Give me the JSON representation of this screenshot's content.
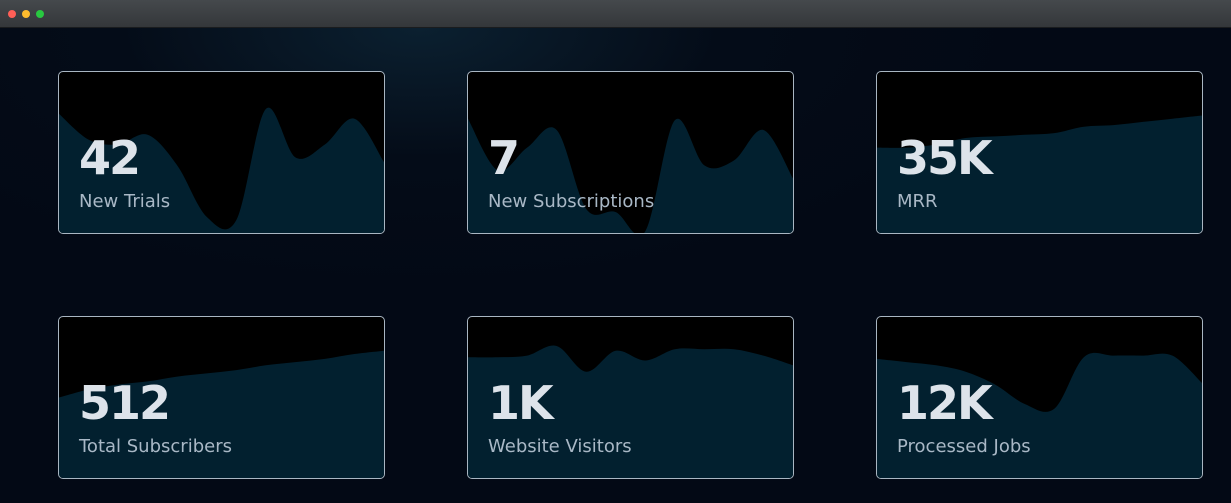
{
  "window": {
    "controls": [
      {
        "name": "close",
        "color": "#ff5f57"
      },
      {
        "name": "minimize",
        "color": "#febc2e"
      },
      {
        "name": "maximize",
        "color": "#28c840"
      }
    ]
  },
  "colors": {
    "card_fill": "#02202f",
    "card_top": "#000000",
    "border": "#a9b6c2",
    "value": "#dde3ea",
    "label": "#a9b8c6"
  },
  "cards": [
    {
      "value": "42",
      "label": "New Trials",
      "sparkline": [
        0.74,
        0.58,
        0.55,
        0.61,
        0.42,
        0.1,
        0.08,
        0.77,
        0.47,
        0.55,
        0.71,
        0.44
      ]
    },
    {
      "value": "7",
      "label": "New Subscriptions",
      "sparkline": [
        0.71,
        0.39,
        0.53,
        0.64,
        0.15,
        0.13,
        0.01,
        0.7,
        0.42,
        0.45,
        0.64,
        0.34
      ]
    },
    {
      "value": "35K",
      "label": "MRR",
      "sparkline": [
        0.53,
        0.53,
        0.55,
        0.59,
        0.6,
        0.61,
        0.62,
        0.66,
        0.67,
        0.69,
        0.71,
        0.73
      ]
    },
    {
      "value": "512",
      "label": "Total Subscribers",
      "sparkline": [
        0.5,
        0.55,
        0.58,
        0.6,
        0.63,
        0.65,
        0.67,
        0.7,
        0.72,
        0.74,
        0.77,
        0.79
      ]
    },
    {
      "value": "1K",
      "label": "Website Visitors",
      "sparkline": [
        0.75,
        0.75,
        0.76,
        0.82,
        0.66,
        0.79,
        0.73,
        0.8,
        0.8,
        0.8,
        0.76,
        0.7
      ]
    },
    {
      "value": "12K",
      "label": "Processed Jobs",
      "sparkline": [
        0.74,
        0.72,
        0.7,
        0.66,
        0.58,
        0.46,
        0.43,
        0.75,
        0.76,
        0.76,
        0.76,
        0.59
      ]
    }
  ]
}
